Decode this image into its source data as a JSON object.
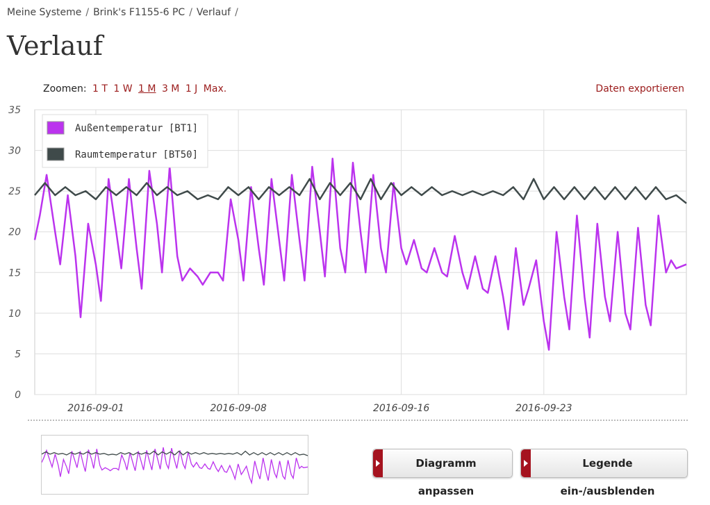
{
  "breadcrumb": [
    "Meine Systeme",
    "Brink's F1155-6 PC",
    "Verlauf"
  ],
  "page_title": "Verlauf",
  "zoom": {
    "label": "Zoomen:",
    "options": [
      "1 T",
      "1 W",
      "1 M",
      "3 M",
      "1 J",
      "Max."
    ],
    "active": "1 M"
  },
  "export_label": "Daten exportieren",
  "buttons": {
    "customize": "Diagramm anpassen",
    "legend_toggle": "Legende ein-/ausblenden"
  },
  "colors": {
    "outside": "#bb33ee",
    "room": "#3f4a4a",
    "accent": "#a5131f"
  },
  "chart_data": {
    "type": "line",
    "x_range": [
      "2016-08-29",
      "2016-09-30"
    ],
    "ylim": [
      0,
      35
    ],
    "yticks": [
      0,
      5,
      10,
      15,
      20,
      25,
      30,
      35
    ],
    "xticks": [
      "2016-09-01",
      "2016-09-08",
      "2016-09-16",
      "2016-09-23"
    ],
    "grid": true,
    "legend_position": "top-left",
    "series": [
      {
        "name": "Außentemperatur [BT1]",
        "points": [
          [
            "2016-08-29",
            19
          ],
          [
            "2016-08-29T06",
            22
          ],
          [
            "2016-08-29T14",
            27
          ],
          [
            "2016-08-30",
            20
          ],
          [
            "2016-08-30T06",
            16
          ],
          [
            "2016-08-30T15",
            24.5
          ],
          [
            "2016-08-31",
            17
          ],
          [
            "2016-08-31T06",
            9.5
          ],
          [
            "2016-08-31T15",
            21
          ],
          [
            "2016-09-01",
            16
          ],
          [
            "2016-09-01T06",
            11.5
          ],
          [
            "2016-09-01T15",
            26.5
          ],
          [
            "2016-09-02",
            20
          ],
          [
            "2016-09-02T06",
            15.5
          ],
          [
            "2016-09-02T15",
            26.5
          ],
          [
            "2016-09-03",
            18
          ],
          [
            "2016-09-03T06",
            13
          ],
          [
            "2016-09-03T15",
            27.5
          ],
          [
            "2016-09-04",
            21
          ],
          [
            "2016-09-04T06",
            15
          ],
          [
            "2016-09-04T15",
            28
          ],
          [
            "2016-09-05",
            17
          ],
          [
            "2016-09-05T06",
            14
          ],
          [
            "2016-09-05T15",
            15.5
          ],
          [
            "2016-09-06",
            14.5
          ],
          [
            "2016-09-06T06",
            13.5
          ],
          [
            "2016-09-06T15",
            15
          ],
          [
            "2016-09-07",
            15
          ],
          [
            "2016-09-07T06",
            14
          ],
          [
            "2016-09-07T15",
            24
          ],
          [
            "2016-09-08",
            19
          ],
          [
            "2016-09-08T06",
            14
          ],
          [
            "2016-09-08T15",
            25.5
          ],
          [
            "2016-09-09",
            18
          ],
          [
            "2016-09-09T06",
            13.5
          ],
          [
            "2016-09-09T15",
            26.5
          ],
          [
            "2016-09-10",
            19
          ],
          [
            "2016-09-10T06",
            14
          ],
          [
            "2016-09-10T15",
            27
          ],
          [
            "2016-09-11",
            19
          ],
          [
            "2016-09-11T06",
            14
          ],
          [
            "2016-09-11T15",
            28
          ],
          [
            "2016-09-12",
            20
          ],
          [
            "2016-09-12T06",
            14.5
          ],
          [
            "2016-09-12T15",
            29
          ],
          [
            "2016-09-13",
            18
          ],
          [
            "2016-09-13T06",
            15
          ],
          [
            "2016-09-13T15",
            28.5
          ],
          [
            "2016-09-14",
            20
          ],
          [
            "2016-09-14T06",
            15
          ],
          [
            "2016-09-14T15",
            27
          ],
          [
            "2016-09-15",
            18
          ],
          [
            "2016-09-15T06",
            15
          ],
          [
            "2016-09-15T15",
            26
          ],
          [
            "2016-09-16",
            18
          ],
          [
            "2016-09-16T06",
            16
          ],
          [
            "2016-09-16T15",
            19
          ],
          [
            "2016-09-17",
            15.5
          ],
          [
            "2016-09-17T06",
            15
          ],
          [
            "2016-09-17T15",
            18
          ],
          [
            "2016-09-18",
            15
          ],
          [
            "2016-09-18T06",
            14.5
          ],
          [
            "2016-09-18T15",
            19.5
          ],
          [
            "2016-09-19",
            15
          ],
          [
            "2016-09-19T06",
            13
          ],
          [
            "2016-09-19T15",
            17
          ],
          [
            "2016-09-20",
            13
          ],
          [
            "2016-09-20T06",
            12.5
          ],
          [
            "2016-09-20T15",
            17
          ],
          [
            "2016-09-21",
            12
          ],
          [
            "2016-09-21T06",
            8
          ],
          [
            "2016-09-21T15",
            18
          ],
          [
            "2016-09-22",
            11
          ],
          [
            "2016-09-22T06",
            13
          ],
          [
            "2016-09-22T15",
            16.5
          ],
          [
            "2016-09-23",
            9
          ],
          [
            "2016-09-23T06",
            5.5
          ],
          [
            "2016-09-23T15",
            20
          ],
          [
            "2016-09-24",
            12
          ],
          [
            "2016-09-24T06",
            8
          ],
          [
            "2016-09-24T15",
            22
          ],
          [
            "2016-09-25",
            12
          ],
          [
            "2016-09-25T06",
            7
          ],
          [
            "2016-09-25T15",
            21
          ],
          [
            "2016-09-26",
            12
          ],
          [
            "2016-09-26T06",
            9
          ],
          [
            "2016-09-26T15",
            20
          ],
          [
            "2016-09-27",
            10
          ],
          [
            "2016-09-27T06",
            8
          ],
          [
            "2016-09-27T15",
            20.5
          ],
          [
            "2016-09-28",
            11
          ],
          [
            "2016-09-28T06",
            8.5
          ],
          [
            "2016-09-28T15",
            22
          ],
          [
            "2016-09-29",
            15
          ],
          [
            "2016-09-29T06",
            16.5
          ],
          [
            "2016-09-29T12",
            15.5
          ],
          [
            "2016-09-30",
            16
          ]
        ]
      },
      {
        "name": "Raumtemperatur [BT50]",
        "points": [
          [
            "2016-08-29",
            24.5
          ],
          [
            "2016-08-29T12",
            26
          ],
          [
            "2016-08-30",
            24.5
          ],
          [
            "2016-08-30T12",
            25.5
          ],
          [
            "2016-08-31",
            24.5
          ],
          [
            "2016-08-31T12",
            25
          ],
          [
            "2016-09-01",
            24
          ],
          [
            "2016-09-01T12",
            25.5
          ],
          [
            "2016-09-02",
            24.5
          ],
          [
            "2016-09-02T12",
            25.5
          ],
          [
            "2016-09-03",
            24.5
          ],
          [
            "2016-09-03T12",
            26
          ],
          [
            "2016-09-04",
            24.5
          ],
          [
            "2016-09-04T12",
            25.5
          ],
          [
            "2016-09-05",
            24.5
          ],
          [
            "2016-09-05T12",
            25
          ],
          [
            "2016-09-06",
            24
          ],
          [
            "2016-09-06T12",
            24.5
          ],
          [
            "2016-09-07",
            24
          ],
          [
            "2016-09-07T12",
            25.5
          ],
          [
            "2016-09-08",
            24.5
          ],
          [
            "2016-09-08T12",
            25.5
          ],
          [
            "2016-09-09",
            24
          ],
          [
            "2016-09-09T12",
            25.5
          ],
          [
            "2016-09-10",
            24.5
          ],
          [
            "2016-09-10T12",
            25.5
          ],
          [
            "2016-09-11",
            24.5
          ],
          [
            "2016-09-11T12",
            26.5
          ],
          [
            "2016-09-12",
            24
          ],
          [
            "2016-09-12T12",
            26
          ],
          [
            "2016-09-13",
            24.5
          ],
          [
            "2016-09-13T12",
            26
          ],
          [
            "2016-09-14",
            24
          ],
          [
            "2016-09-14T12",
            26.5
          ],
          [
            "2016-09-15",
            24
          ],
          [
            "2016-09-15T12",
            26
          ],
          [
            "2016-09-16",
            24.5
          ],
          [
            "2016-09-16T12",
            25.5
          ],
          [
            "2016-09-17",
            24.5
          ],
          [
            "2016-09-17T12",
            25.5
          ],
          [
            "2016-09-18",
            24.5
          ],
          [
            "2016-09-18T12",
            25
          ],
          [
            "2016-09-19",
            24.5
          ],
          [
            "2016-09-19T12",
            25
          ],
          [
            "2016-09-20",
            24.5
          ],
          [
            "2016-09-20T12",
            25
          ],
          [
            "2016-09-21",
            24.5
          ],
          [
            "2016-09-21T12",
            25.5
          ],
          [
            "2016-09-22",
            24
          ],
          [
            "2016-09-22T12",
            26.5
          ],
          [
            "2016-09-23",
            24
          ],
          [
            "2016-09-23T12",
            25.5
          ],
          [
            "2016-09-24",
            24
          ],
          [
            "2016-09-24T12",
            25.5
          ],
          [
            "2016-09-25",
            24
          ],
          [
            "2016-09-25T12",
            25.5
          ],
          [
            "2016-09-26",
            24
          ],
          [
            "2016-09-26T12",
            25.5
          ],
          [
            "2016-09-27",
            24
          ],
          [
            "2016-09-27T12",
            25.5
          ],
          [
            "2016-09-28",
            24
          ],
          [
            "2016-09-28T12",
            25.5
          ],
          [
            "2016-09-29",
            24
          ],
          [
            "2016-09-29T12",
            24.5
          ],
          [
            "2016-09-30",
            23.5
          ]
        ]
      }
    ]
  }
}
